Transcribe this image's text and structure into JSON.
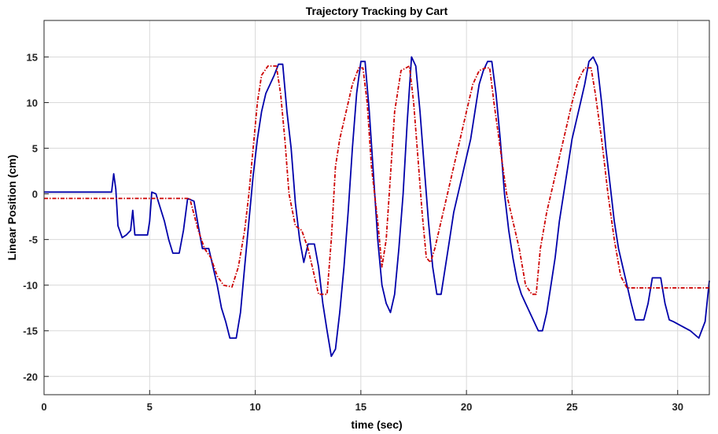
{
  "chart_data": {
    "type": "line",
    "title": "Trajectory Tracking by Cart",
    "xlabel": "time (sec)",
    "ylabel": "Linear Position (cm)",
    "xlim": [
      0,
      31.5
    ],
    "ylim": [
      -22,
      19
    ],
    "xticks": [
      0,
      5,
      10,
      15,
      20,
      25,
      30
    ],
    "yticks": [
      -20,
      -15,
      -10,
      -5,
      0,
      5,
      10,
      15
    ],
    "grid": true,
    "legend": "none",
    "series": [
      {
        "color": "#0000aa",
        "style": "solid",
        "points": [
          [
            0,
            0.2
          ],
          [
            3.2,
            0.2
          ],
          [
            3.3,
            2.2
          ],
          [
            3.4,
            0.5
          ],
          [
            3.5,
            -3.5
          ],
          [
            3.7,
            -4.8
          ],
          [
            3.9,
            -4.5
          ],
          [
            4.1,
            -4.0
          ],
          [
            4.2,
            -1.8
          ],
          [
            4.3,
            -4.5
          ],
          [
            4.9,
            -4.5
          ],
          [
            5.0,
            -3.0
          ],
          [
            5.1,
            0.2
          ],
          [
            5.3,
            0.0
          ],
          [
            5.5,
            -1.5
          ],
          [
            5.7,
            -3.0
          ],
          [
            5.9,
            -5.0
          ],
          [
            6.1,
            -6.5
          ],
          [
            6.4,
            -6.5
          ],
          [
            6.6,
            -4.0
          ],
          [
            6.8,
            -0.5
          ],
          [
            7.1,
            -0.8
          ],
          [
            7.3,
            -3.5
          ],
          [
            7.5,
            -6.0
          ],
          [
            7.8,
            -6.0
          ],
          [
            8.0,
            -8.0
          ],
          [
            8.2,
            -10.0
          ],
          [
            8.4,
            -12.5
          ],
          [
            8.6,
            -14.0
          ],
          [
            8.8,
            -15.8
          ],
          [
            9.1,
            -15.8
          ],
          [
            9.3,
            -13.0
          ],
          [
            9.5,
            -8.0
          ],
          [
            9.7,
            -3.0
          ],
          [
            9.9,
            2.0
          ],
          [
            10.1,
            6.0
          ],
          [
            10.3,
            9.0
          ],
          [
            10.5,
            11.0
          ],
          [
            10.7,
            12.0
          ],
          [
            10.9,
            13.0
          ],
          [
            11.1,
            14.2
          ],
          [
            11.3,
            14.2
          ],
          [
            11.5,
            9.0
          ],
          [
            11.7,
            5.0
          ],
          [
            11.9,
            -1.0
          ],
          [
            12.1,
            -5.0
          ],
          [
            12.3,
            -7.5
          ],
          [
            12.5,
            -5.5
          ],
          [
            12.8,
            -5.5
          ],
          [
            13.0,
            -8.0
          ],
          [
            13.2,
            -12.0
          ],
          [
            13.4,
            -15.0
          ],
          [
            13.6,
            -17.8
          ],
          [
            13.8,
            -17.0
          ],
          [
            14.0,
            -13.0
          ],
          [
            14.2,
            -8.0
          ],
          [
            14.4,
            -2.0
          ],
          [
            14.6,
            5.0
          ],
          [
            14.8,
            11.0
          ],
          [
            15.0,
            14.5
          ],
          [
            15.2,
            14.5
          ],
          [
            15.4,
            9.0
          ],
          [
            15.6,
            2.0
          ],
          [
            15.8,
            -5.0
          ],
          [
            16.0,
            -10.0
          ],
          [
            16.2,
            -12.0
          ],
          [
            16.4,
            -13.0
          ],
          [
            16.6,
            -11.0
          ],
          [
            16.8,
            -6.0
          ],
          [
            17.0,
            0.0
          ],
          [
            17.2,
            8.0
          ],
          [
            17.4,
            15.0
          ],
          [
            17.6,
            14.0
          ],
          [
            17.8,
            9.0
          ],
          [
            18.0,
            3.0
          ],
          [
            18.2,
            -3.0
          ],
          [
            18.4,
            -8.0
          ],
          [
            18.6,
            -11.0
          ],
          [
            18.8,
            -11.0
          ],
          [
            19.0,
            -8.0
          ],
          [
            19.2,
            -5.0
          ],
          [
            19.4,
            -2.0
          ],
          [
            19.6,
            0.0
          ],
          [
            19.8,
            2.0
          ],
          [
            20.0,
            4.0
          ],
          [
            20.2,
            6.0
          ],
          [
            20.4,
            9.0
          ],
          [
            20.6,
            12.0
          ],
          [
            20.8,
            13.5
          ],
          [
            21.0,
            14.5
          ],
          [
            21.2,
            14.5
          ],
          [
            21.4,
            11.0
          ],
          [
            21.6,
            6.0
          ],
          [
            21.8,
            0.0
          ],
          [
            22.0,
            -4.0
          ],
          [
            22.2,
            -7.0
          ],
          [
            22.4,
            -9.5
          ],
          [
            22.6,
            -11.0
          ],
          [
            22.8,
            -12.0
          ],
          [
            23.0,
            -13.0
          ],
          [
            23.2,
            -14.0
          ],
          [
            23.4,
            -15.0
          ],
          [
            23.6,
            -15.0
          ],
          [
            23.8,
            -13.0
          ],
          [
            24.0,
            -10.0
          ],
          [
            24.2,
            -7.0
          ],
          [
            24.4,
            -3.0
          ],
          [
            24.6,
            0.0
          ],
          [
            24.8,
            3.0
          ],
          [
            25.0,
            6.0
          ],
          [
            25.2,
            8.0
          ],
          [
            25.4,
            10.0
          ],
          [
            25.6,
            12.0
          ],
          [
            25.8,
            14.5
          ],
          [
            26.0,
            15.0
          ],
          [
            26.2,
            14.0
          ],
          [
            26.4,
            10.0
          ],
          [
            26.6,
            5.0
          ],
          [
            26.8,
            1.0
          ],
          [
            27.0,
            -3.0
          ],
          [
            27.2,
            -6.0
          ],
          [
            27.4,
            -8.0
          ],
          [
            27.6,
            -10.0
          ],
          [
            27.8,
            -12.0
          ],
          [
            28.0,
            -13.8
          ],
          [
            28.4,
            -13.8
          ],
          [
            28.6,
            -12.0
          ],
          [
            28.8,
            -9.2
          ],
          [
            29.2,
            -9.2
          ],
          [
            29.4,
            -12.0
          ],
          [
            29.6,
            -13.8
          ],
          [
            29.8,
            -14.0
          ],
          [
            30.2,
            -14.5
          ],
          [
            30.6,
            -15.0
          ],
          [
            31.0,
            -15.8
          ],
          [
            31.3,
            -14.0
          ],
          [
            31.5,
            -9.5
          ]
        ]
      },
      {
        "color": "#cc0000",
        "style": "dashed",
        "points": [
          [
            0,
            -0.5
          ],
          [
            6.9,
            -0.5
          ],
          [
            7.3,
            -4.0
          ],
          [
            7.6,
            -6.0
          ],
          [
            7.9,
            -7.0
          ],
          [
            8.2,
            -9.0
          ],
          [
            8.5,
            -10.0
          ],
          [
            8.9,
            -10.2
          ],
          [
            9.2,
            -8.0
          ],
          [
            9.5,
            -4.0
          ],
          [
            9.7,
            0.0
          ],
          [
            9.9,
            5.0
          ],
          [
            10.1,
            10.0
          ],
          [
            10.3,
            13.0
          ],
          [
            10.6,
            14.0
          ],
          [
            11.0,
            14.0
          ],
          [
            11.2,
            11.0
          ],
          [
            11.4,
            6.0
          ],
          [
            11.6,
            0.0
          ],
          [
            11.9,
            -3.5
          ],
          [
            12.2,
            -4.0
          ],
          [
            12.5,
            -6.0
          ],
          [
            12.8,
            -9.0
          ],
          [
            13.0,
            -11.0
          ],
          [
            13.4,
            -11.0
          ],
          [
            13.6,
            -5.0
          ],
          [
            13.8,
            3.0
          ],
          [
            14.0,
            6.0
          ],
          [
            14.3,
            9.0
          ],
          [
            14.6,
            12.0
          ],
          [
            14.9,
            13.8
          ],
          [
            15.1,
            13.8
          ],
          [
            15.3,
            10.0
          ],
          [
            15.5,
            3.0
          ],
          [
            15.8,
            -3.0
          ],
          [
            16.0,
            -8.0
          ],
          [
            16.2,
            -5.0
          ],
          [
            16.4,
            2.0
          ],
          [
            16.6,
            9.0
          ],
          [
            16.9,
            13.5
          ],
          [
            17.3,
            14.0
          ],
          [
            17.5,
            10.0
          ],
          [
            17.7,
            4.0
          ],
          [
            17.9,
            -2.0
          ],
          [
            18.1,
            -7.0
          ],
          [
            18.3,
            -7.5
          ],
          [
            18.5,
            -6.0
          ],
          [
            18.8,
            -3.0
          ],
          [
            19.1,
            0.0
          ],
          [
            19.4,
            3.0
          ],
          [
            19.7,
            6.0
          ],
          [
            20.0,
            9.0
          ],
          [
            20.3,
            12.0
          ],
          [
            20.6,
            13.5
          ],
          [
            20.9,
            13.8
          ],
          [
            21.1,
            13.8
          ],
          [
            21.3,
            10.0
          ],
          [
            21.6,
            5.0
          ],
          [
            21.9,
            0.0
          ],
          [
            22.2,
            -3.0
          ],
          [
            22.5,
            -6.0
          ],
          [
            22.8,
            -10.0
          ],
          [
            23.1,
            -11.0
          ],
          [
            23.3,
            -11.0
          ],
          [
            23.5,
            -6.0
          ],
          [
            23.8,
            -2.0
          ],
          [
            24.1,
            1.0
          ],
          [
            24.4,
            4.0
          ],
          [
            24.7,
            7.0
          ],
          [
            25.0,
            10.0
          ],
          [
            25.3,
            12.5
          ],
          [
            25.6,
            13.8
          ],
          [
            25.9,
            13.8
          ],
          [
            26.1,
            11.0
          ],
          [
            26.4,
            6.0
          ],
          [
            26.7,
            0.0
          ],
          [
            27.0,
            -5.0
          ],
          [
            27.3,
            -9.0
          ],
          [
            27.6,
            -10.3
          ],
          [
            31.5,
            -10.3
          ]
        ]
      }
    ]
  }
}
